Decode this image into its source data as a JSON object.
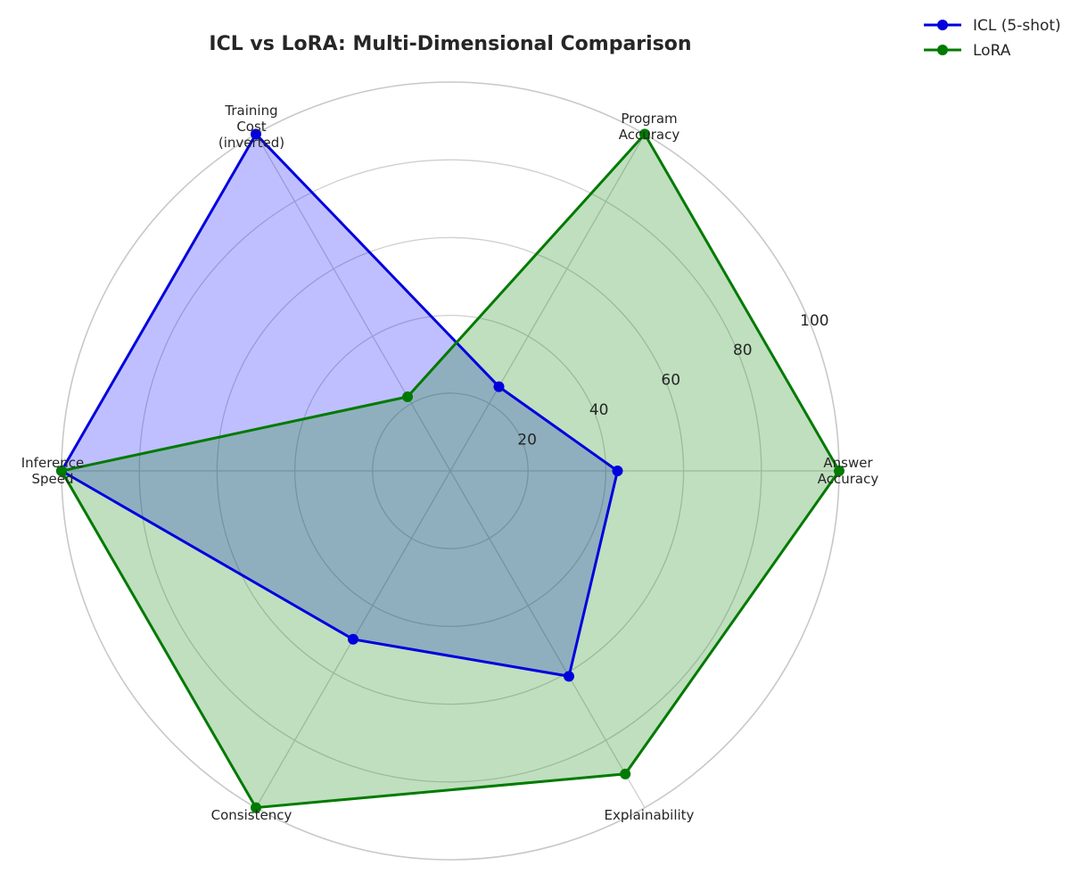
{
  "chart_data": {
    "type": "radar",
    "title": "ICL vs LoRA: Multi-Dimensional Comparison",
    "axes": [
      [
        "Answer",
        "Accuracy"
      ],
      [
        "Program",
        "Accuracy"
      ],
      [
        "Training",
        "Cost",
        "(inverted)"
      ],
      [
        "Inference",
        "Speed"
      ],
      [
        "Consistency"
      ],
      [
        "Explainability"
      ]
    ],
    "rlim": [
      0,
      100
    ],
    "rticks": [
      "20",
      "40",
      "60",
      "80",
      "100"
    ],
    "grid": true,
    "legend_position": "top-right",
    "series": [
      {
        "name": "ICL (5-shot)",
        "color": "#0000dd",
        "fill": "#0000ff",
        "values": [
          43,
          25,
          100,
          100,
          50,
          61
        ]
      },
      {
        "name": "LoRA",
        "color": "#007a00",
        "fill": "#008000",
        "values": [
          100,
          100,
          22,
          100,
          100,
          90
        ]
      }
    ]
  }
}
